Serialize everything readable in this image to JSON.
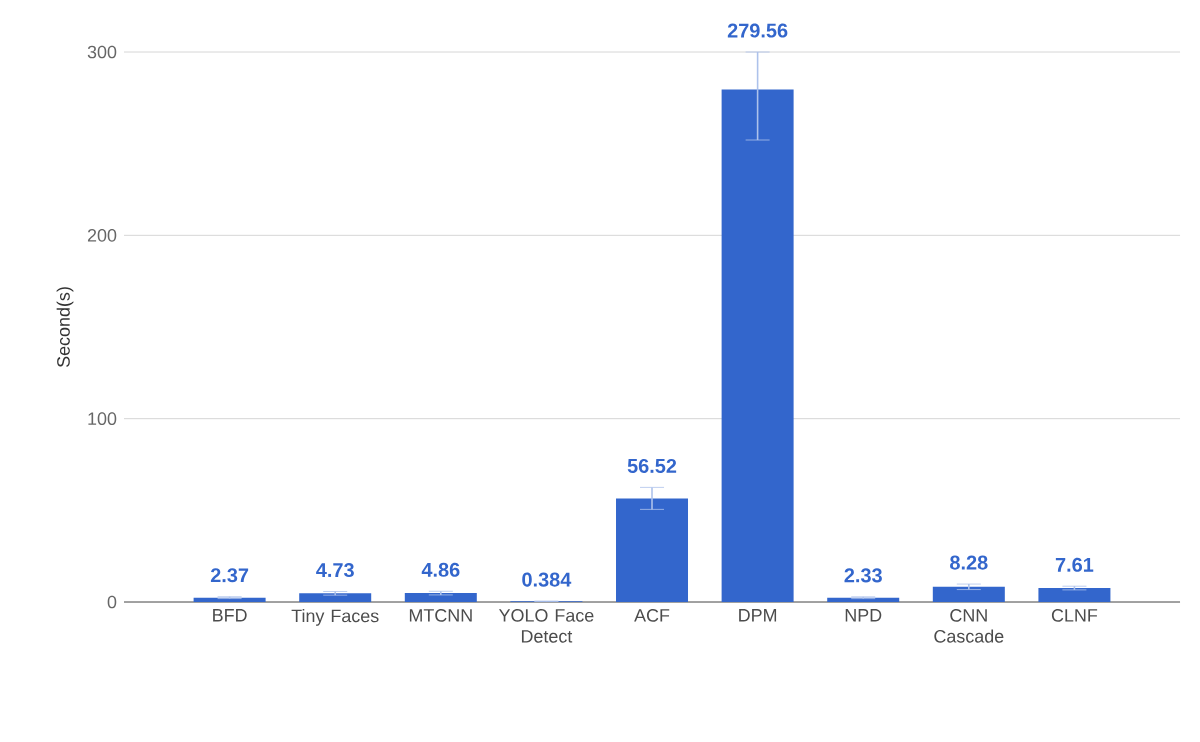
{
  "chart_data": {
    "type": "bar",
    "ylabel": "Second(s)",
    "categories": [
      "BFD",
      "Tiny Faces",
      "MTCNN",
      "YOLO Face Detect",
      "ACF",
      "DPM",
      "NPD",
      "CNN Cascade",
      "CLNF"
    ],
    "values": [
      2.37,
      4.73,
      4.86,
      0.384,
      56.52,
      279.56,
      2.33,
      8.28,
      7.61
    ],
    "errors": [
      0.5,
      1,
      1,
      0.1,
      6,
      [
        252,
        300
      ],
      0.5,
      1.5,
      1
    ],
    "color": "#3366cc",
    "ylim": [
      0,
      300
    ],
    "yticks": [
      0,
      100,
      200,
      300
    ],
    "grid": "y",
    "data_labels": true
  }
}
